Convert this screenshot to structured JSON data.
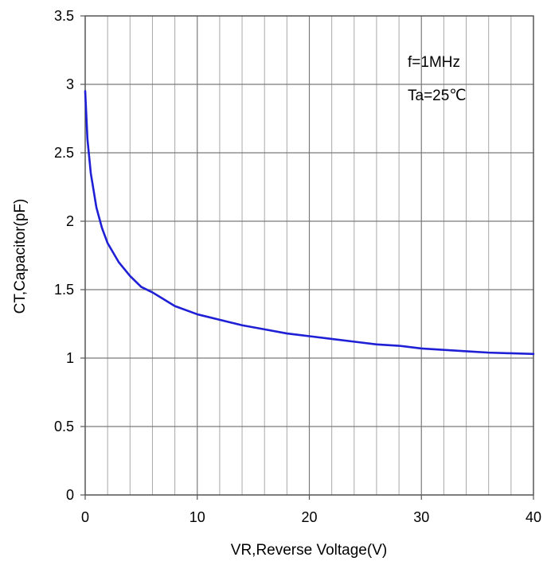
{
  "chart_data": {
    "type": "line",
    "title": "",
    "xlabel": "VR,Reverse Voltage(V)",
    "ylabel": "CT,Capacitor(pF)",
    "xlim": [
      0,
      40
    ],
    "ylim": [
      0,
      3.5
    ],
    "x_ticks": [
      0,
      10,
      20,
      30,
      40
    ],
    "x_tick_labels": [
      "0",
      "10",
      "20",
      "30",
      "40"
    ],
    "y_ticks": [
      0,
      0.5,
      1,
      1.5,
      2,
      2.5,
      3,
      3.5
    ],
    "y_tick_labels": [
      "0",
      "0.5",
      "1",
      "1.5",
      "2",
      "2.5",
      "3",
      "3.5"
    ],
    "grid": true,
    "annotations": [
      "f=1MHz",
      "Ta=25℃"
    ],
    "series": [
      {
        "color": "#1f1fd6",
        "x": [
          0,
          0.2,
          0.5,
          1,
          1.5,
          2,
          3,
          4,
          5,
          6,
          7,
          8,
          10,
          12,
          14,
          16,
          18,
          20,
          22,
          24,
          26,
          28,
          30,
          32,
          34,
          36,
          38,
          40
        ],
        "y": [
          2.95,
          2.6,
          2.35,
          2.1,
          1.95,
          1.84,
          1.7,
          1.6,
          1.52,
          1.48,
          1.43,
          1.38,
          1.32,
          1.28,
          1.24,
          1.21,
          1.18,
          1.16,
          1.14,
          1.12,
          1.1,
          1.09,
          1.07,
          1.06,
          1.05,
          1.04,
          1.035,
          1.03
        ]
      }
    ]
  }
}
